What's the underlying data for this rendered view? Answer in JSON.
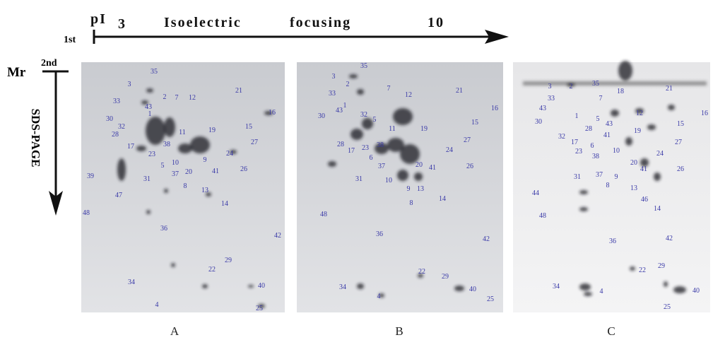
{
  "header": {
    "pi": "pI",
    "start": "3",
    "title_left": "Isoelectric",
    "title_right": "focusing",
    "end": "10",
    "first": "1st",
    "second": "2nd",
    "mr": "Mr",
    "sds": "SDS-PAGE"
  },
  "panels": [
    {
      "label": "A",
      "spots": [
        "35",
        "3",
        "2",
        "33",
        "43",
        "7",
        "12",
        "21",
        "16",
        "1",
        "30",
        "32",
        "15",
        "28",
        "19",
        "11",
        "27",
        "17",
        "38",
        "23",
        "24",
        "9",
        "10",
        "5",
        "37",
        "20",
        "41",
        "26",
        "39",
        "31",
        "8",
        "13",
        "47",
        "14",
        "48",
        "36",
        "42",
        "29",
        "22",
        "34",
        "40",
        "4",
        "25"
      ]
    },
    {
      "label": "B",
      "spots": [
        "35",
        "3",
        "2",
        "33",
        "7",
        "12",
        "21",
        "16",
        "1",
        "43",
        "32",
        "30",
        "5",
        "11",
        "19",
        "15",
        "28",
        "17",
        "23",
        "38",
        "27",
        "24",
        "6",
        "37",
        "20",
        "41",
        "26",
        "10",
        "9",
        "13",
        "31",
        "8",
        "14",
        "48",
        "36",
        "42",
        "22",
        "29",
        "34",
        "40",
        "4",
        "25"
      ]
    },
    {
      "label": "C",
      "spots": [
        "3",
        "2",
        "35",
        "18",
        "33",
        "7",
        "21",
        "43",
        "1",
        "12",
        "16",
        "30",
        "5",
        "43",
        "15",
        "19",
        "28",
        "41",
        "32",
        "17",
        "6",
        "27",
        "23",
        "38",
        "10",
        "24",
        "37",
        "20",
        "9",
        "41",
        "26",
        "31",
        "8",
        "13",
        "44",
        "46",
        "14",
        "48",
        "36",
        "42",
        "22",
        "29",
        "34",
        "4",
        "40",
        "25"
      ]
    }
  ]
}
